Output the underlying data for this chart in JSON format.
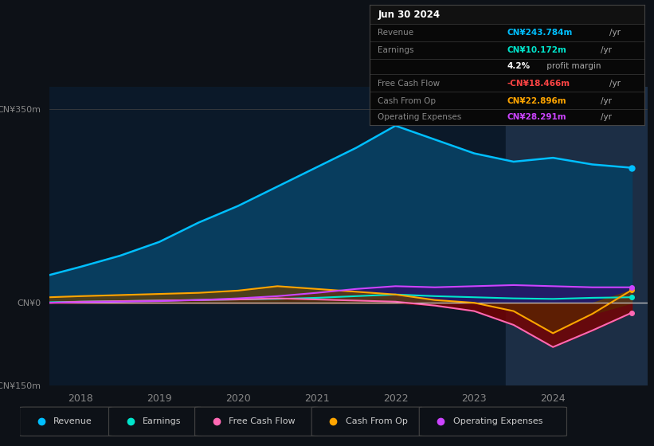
{
  "background_color": "#0d1117",
  "chart_bg": "#0b1929",
  "title_box": {
    "date": "Jun 30 2024",
    "rows": [
      {
        "label": "Revenue",
        "value": "CN¥243.784m",
        "unit": "/yr",
        "color": "#00bfff"
      },
      {
        "label": "Earnings",
        "value": "CN¥10.172m",
        "unit": "/yr",
        "color": "#00e5cc"
      },
      {
        "label": "",
        "value": "4.2%",
        "unit": " profit margin",
        "color": "#ffffff"
      },
      {
        "label": "Free Cash Flow",
        "value": "-CN¥18.466m",
        "unit": "/yr",
        "color": "#ff4444"
      },
      {
        "label": "Cash From Op",
        "value": "CN¥22.896m",
        "unit": "/yr",
        "color": "#ffa500"
      },
      {
        "label": "Operating Expenses",
        "value": "CN¥28.291m",
        "unit": "/yr",
        "color": "#cc44ff"
      }
    ]
  },
  "ylim": [
    -150,
    390
  ],
  "yticks": [
    -150,
    0,
    350
  ],
  "ytick_labels": [
    "-CN¥150m",
    "CN¥0",
    "CN¥350m"
  ],
  "xlim": [
    2017.6,
    2025.2
  ],
  "xticks": [
    2018,
    2019,
    2020,
    2021,
    2022,
    2023,
    2024
  ],
  "legend": [
    {
      "label": "Revenue",
      "color": "#00bfff"
    },
    {
      "label": "Earnings",
      "color": "#00e5cc"
    },
    {
      "label": "Free Cash Flow",
      "color": "#ff69b4"
    },
    {
      "label": "Cash From Op",
      "color": "#ffa500"
    },
    {
      "label": "Operating Expenses",
      "color": "#cc44ff"
    }
  ],
  "series": {
    "x": [
      2017.6,
      2018.0,
      2018.5,
      2019.0,
      2019.5,
      2020.0,
      2020.5,
      2021.0,
      2021.5,
      2022.0,
      2022.5,
      2023.0,
      2023.5,
      2024.0,
      2024.5,
      2025.0
    ],
    "revenue": [
      50,
      65,
      85,
      110,
      145,
      175,
      210,
      245,
      280,
      320,
      295,
      270,
      255,
      262,
      250,
      244
    ],
    "earnings": [
      1,
      2,
      3,
      4,
      5,
      6,
      7,
      9,
      12,
      15,
      12,
      10,
      8,
      7,
      9,
      10
    ],
    "fcf": [
      0,
      2,
      3,
      4,
      5,
      6,
      8,
      6,
      4,
      2,
      -5,
      -15,
      -40,
      -80,
      -50,
      -18
    ],
    "cashfromop": [
      10,
      12,
      14,
      16,
      18,
      22,
      30,
      25,
      20,
      15,
      5,
      0,
      -15,
      -55,
      -20,
      23
    ],
    "opex": [
      0,
      1,
      2,
      3,
      5,
      8,
      12,
      18,
      25,
      30,
      28,
      30,
      32,
      30,
      28,
      28
    ]
  },
  "highlight_x_start": 2023.4,
  "dot_x": 2025.0,
  "dot_revenue_y": 244,
  "dot_earnings_y": 10,
  "dot_fcf_y": -18,
  "dot_cashfromop_y": 23,
  "dot_opex_y": 28
}
